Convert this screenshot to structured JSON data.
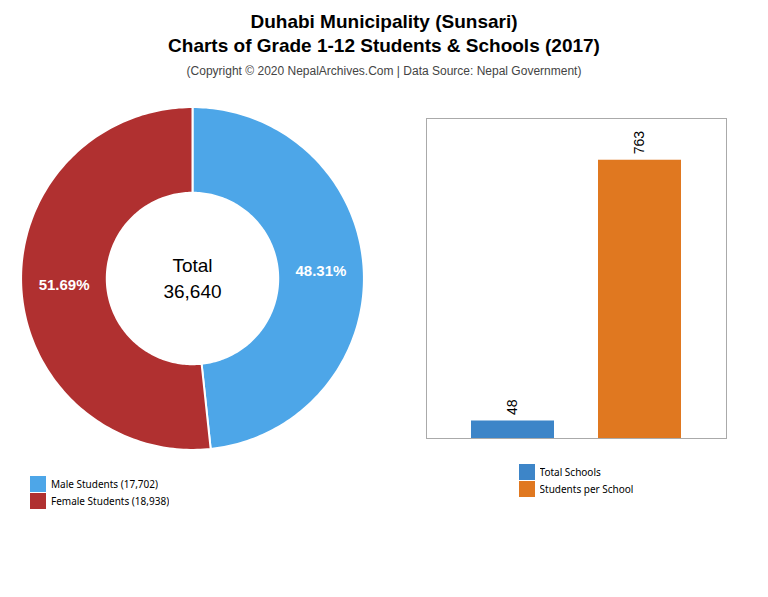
{
  "chart_data": [
    {
      "type": "pie",
      "title": "Duhabi Municipality (Sunsari)\nCharts of Grade 1-12 Students & Schools (2017)",
      "subtitle": "(Copyright © 2020 NepalArchives.Com | Data Source: Nepal Government)",
      "categories": [
        "Male Students (17,702)",
        "Female Students (18,938)"
      ],
      "values": [
        48.31,
        51.69
      ],
      "value_labels": [
        "48.31%",
        "51.69%"
      ],
      "data_labels": true,
      "colors": [
        "#4da6e8",
        "#b03030"
      ],
      "annotations": [
        "Total",
        "36,640"
      ],
      "legend": "lower left"
    },
    {
      "type": "bar",
      "categories": [
        "Total Schools",
        "Students per School"
      ],
      "values": [
        48,
        763
      ],
      "colors": [
        "#3d85c8",
        "#e07820"
      ],
      "ylim": [
        0,
        877.45
      ],
      "data_labels": true,
      "tick_labels": false,
      "legend": "lower center"
    }
  ]
}
